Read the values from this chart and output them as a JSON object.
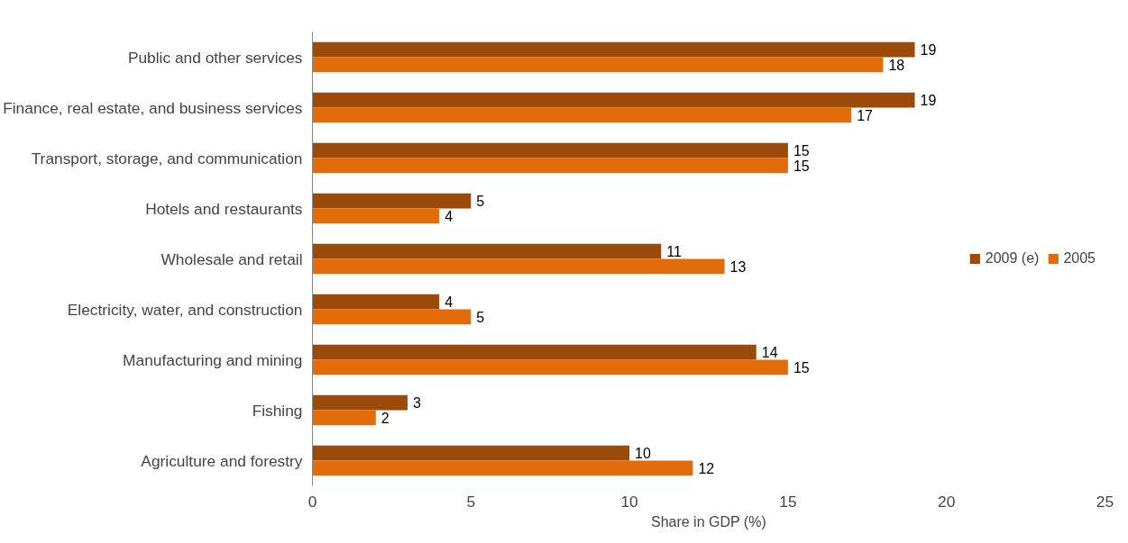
{
  "chart_data": {
    "type": "bar",
    "orientation": "horizontal",
    "xlabel": "Share in GDP (%)",
    "categories": [
      "Public and other services",
      "Finance, real estate, and business services",
      "Transport, storage, and communication",
      "Hotels and restaurants",
      "Wholesale and retail",
      "Electricity, water, and construction",
      "Manufacturing and mining",
      "Fishing",
      "Agriculture and forestry"
    ],
    "series": [
      {
        "name": "2009 (e)",
        "color": "#9c4a0a",
        "values": [
          19,
          19,
          15,
          5,
          11,
          4,
          14,
          3,
          10
        ]
      },
      {
        "name": "2005",
        "color": "#e36c0a",
        "values": [
          18,
          17,
          15,
          4,
          13,
          5,
          15,
          2,
          12
        ]
      }
    ],
    "xlim": [
      0,
      25
    ],
    "xticks": [
      0,
      5,
      10,
      15,
      20,
      25
    ],
    "data_labels": true,
    "legend": "right",
    "grid": false
  }
}
